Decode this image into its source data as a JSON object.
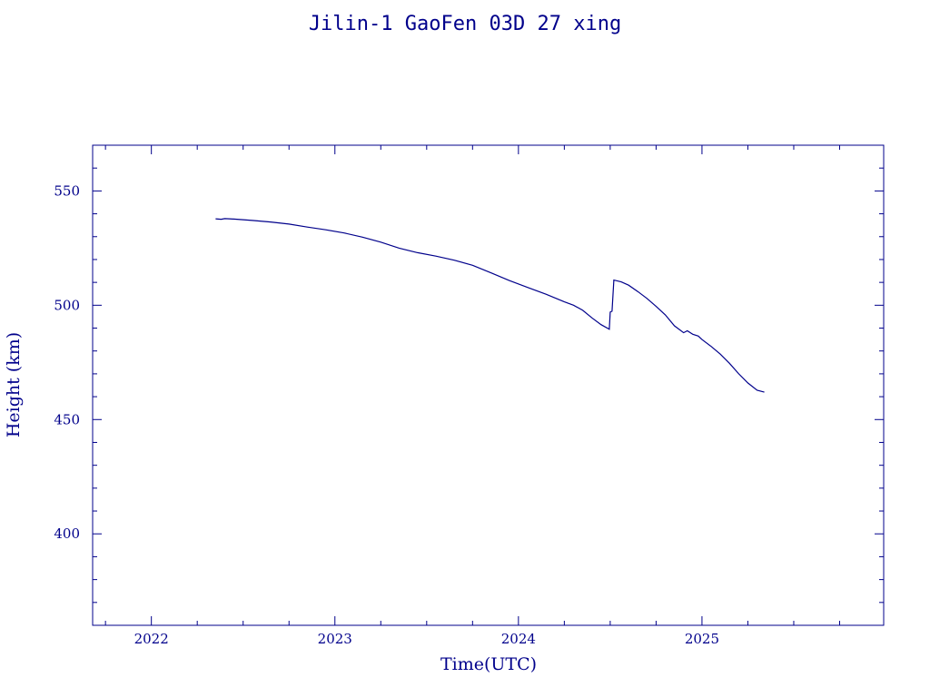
{
  "colors": {
    "foreground": "#00008b",
    "background": "#ffffff"
  },
  "chart_data": {
    "type": "line",
    "title": "Jilin-1 GaoFen 03D 27 xing",
    "xlabel": "Time(UTC)",
    "ylabel": "Height (km)",
    "xlim": [
      2021.68,
      2025.99
    ],
    "ylim": [
      360,
      570
    ],
    "x_ticks": [
      "2022",
      "2023",
      "2024",
      "2025"
    ],
    "y_ticks": [
      "400",
      "450",
      "500",
      "550"
    ],
    "grid": false,
    "series": [
      {
        "color": "#00008b",
        "points": [
          [
            2022.35,
            537.8
          ],
          [
            2022.38,
            537.6
          ],
          [
            2022.4,
            537.9
          ],
          [
            2022.45,
            537.7
          ],
          [
            2022.55,
            537.1
          ],
          [
            2022.65,
            536.4
          ],
          [
            2022.75,
            535.5
          ],
          [
            2022.85,
            534.2
          ],
          [
            2022.95,
            533.0
          ],
          [
            2023.05,
            531.6
          ],
          [
            2023.15,
            529.8
          ],
          [
            2023.25,
            527.6
          ],
          [
            2023.35,
            525.0
          ],
          [
            2023.45,
            523.0
          ],
          [
            2023.55,
            521.5
          ],
          [
            2023.65,
            519.7
          ],
          [
            2023.75,
            517.5
          ],
          [
            2023.85,
            514.2
          ],
          [
            2023.95,
            510.8
          ],
          [
            2024.05,
            507.8
          ],
          [
            2024.15,
            504.8
          ],
          [
            2024.25,
            501.5
          ],
          [
            2024.3,
            500.0
          ],
          [
            2024.35,
            497.8
          ],
          [
            2024.4,
            494.5
          ],
          [
            2024.45,
            491.5
          ],
          [
            2024.495,
            489.5
          ],
          [
            2024.5,
            497.0
          ],
          [
            2024.51,
            497.4
          ],
          [
            2024.52,
            511.0
          ],
          [
            2024.56,
            510.2
          ],
          [
            2024.6,
            508.8
          ],
          [
            2024.65,
            506.0
          ],
          [
            2024.7,
            503.0
          ],
          [
            2024.75,
            499.5
          ],
          [
            2024.8,
            495.8
          ],
          [
            2024.85,
            491.0
          ],
          [
            2024.9,
            488.0
          ],
          [
            2024.92,
            488.8
          ],
          [
            2024.95,
            487.3
          ],
          [
            2024.98,
            486.5
          ],
          [
            2025.0,
            485.0
          ],
          [
            2025.05,
            482.0
          ],
          [
            2025.1,
            478.6
          ],
          [
            2025.15,
            474.6
          ],
          [
            2025.2,
            470.0
          ],
          [
            2025.25,
            466.0
          ],
          [
            2025.3,
            462.8
          ],
          [
            2025.34,
            462.0
          ]
        ]
      }
    ]
  }
}
